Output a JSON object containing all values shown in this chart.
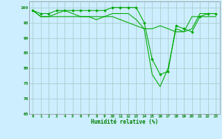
{
  "xlabel": "Humidité relative (%)",
  "bg_color": "#cceeff",
  "grid_color": "#aacccc",
  "line_color": "#00aa00",
  "marker_color": "#00aa00",
  "ylim": [
    65,
    102
  ],
  "xlim": [
    -0.5,
    23.5
  ],
  "yticks": [
    65,
    70,
    75,
    80,
    85,
    90,
    95,
    100
  ],
  "xticks": [
    0,
    1,
    2,
    3,
    4,
    5,
    6,
    7,
    8,
    9,
    10,
    11,
    12,
    13,
    14,
    15,
    16,
    17,
    18,
    19,
    20,
    21,
    22,
    23
  ],
  "series": [
    [
      99,
      98,
      98,
      99,
      99,
      99,
      99,
      99,
      99,
      99,
      100,
      100,
      100,
      100,
      95,
      83,
      78,
      79,
      94,
      93,
      92,
      97,
      98,
      98
    ],
    [
      99,
      97,
      97,
      98,
      99,
      98,
      97,
      97,
      97,
      97,
      98,
      98,
      98,
      96,
      93,
      78,
      74,
      80,
      93,
      92,
      93,
      98,
      98,
      98
    ],
    [
      99,
      97,
      97,
      97,
      97,
      97,
      97,
      97,
      96,
      97,
      97,
      96,
      95,
      94,
      93,
      93,
      94,
      93,
      92,
      92,
      97,
      97,
      97,
      97
    ]
  ]
}
